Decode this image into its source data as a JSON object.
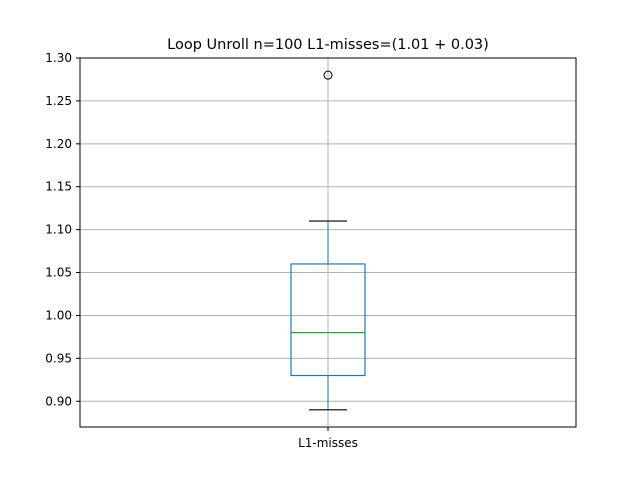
{
  "chart_data": {
    "type": "box",
    "title": "Loop Unroll n=100  L1-misses=(1.01 + 0.03)",
    "categories": [
      "L1-misses"
    ],
    "boxes": [
      {
        "label": "L1-misses",
        "whisker_low": 0.89,
        "q1": 0.93,
        "median": 0.98,
        "q3": 1.06,
        "whisker_high": 1.11,
        "outliers": [
          1.28
        ]
      }
    ],
    "ylim": [
      0.87,
      1.3
    ],
    "yticks": [
      "0.90",
      "0.95",
      "1.00",
      "1.05",
      "1.10",
      "1.15",
      "1.20",
      "1.25",
      "1.30"
    ],
    "grid": true,
    "xlabel": "",
    "ylabel": "",
    "colors": {
      "box": "#1f77b4",
      "median": "#2ca02c",
      "whisker": "#000000",
      "grid": "#b0b0b0"
    }
  }
}
